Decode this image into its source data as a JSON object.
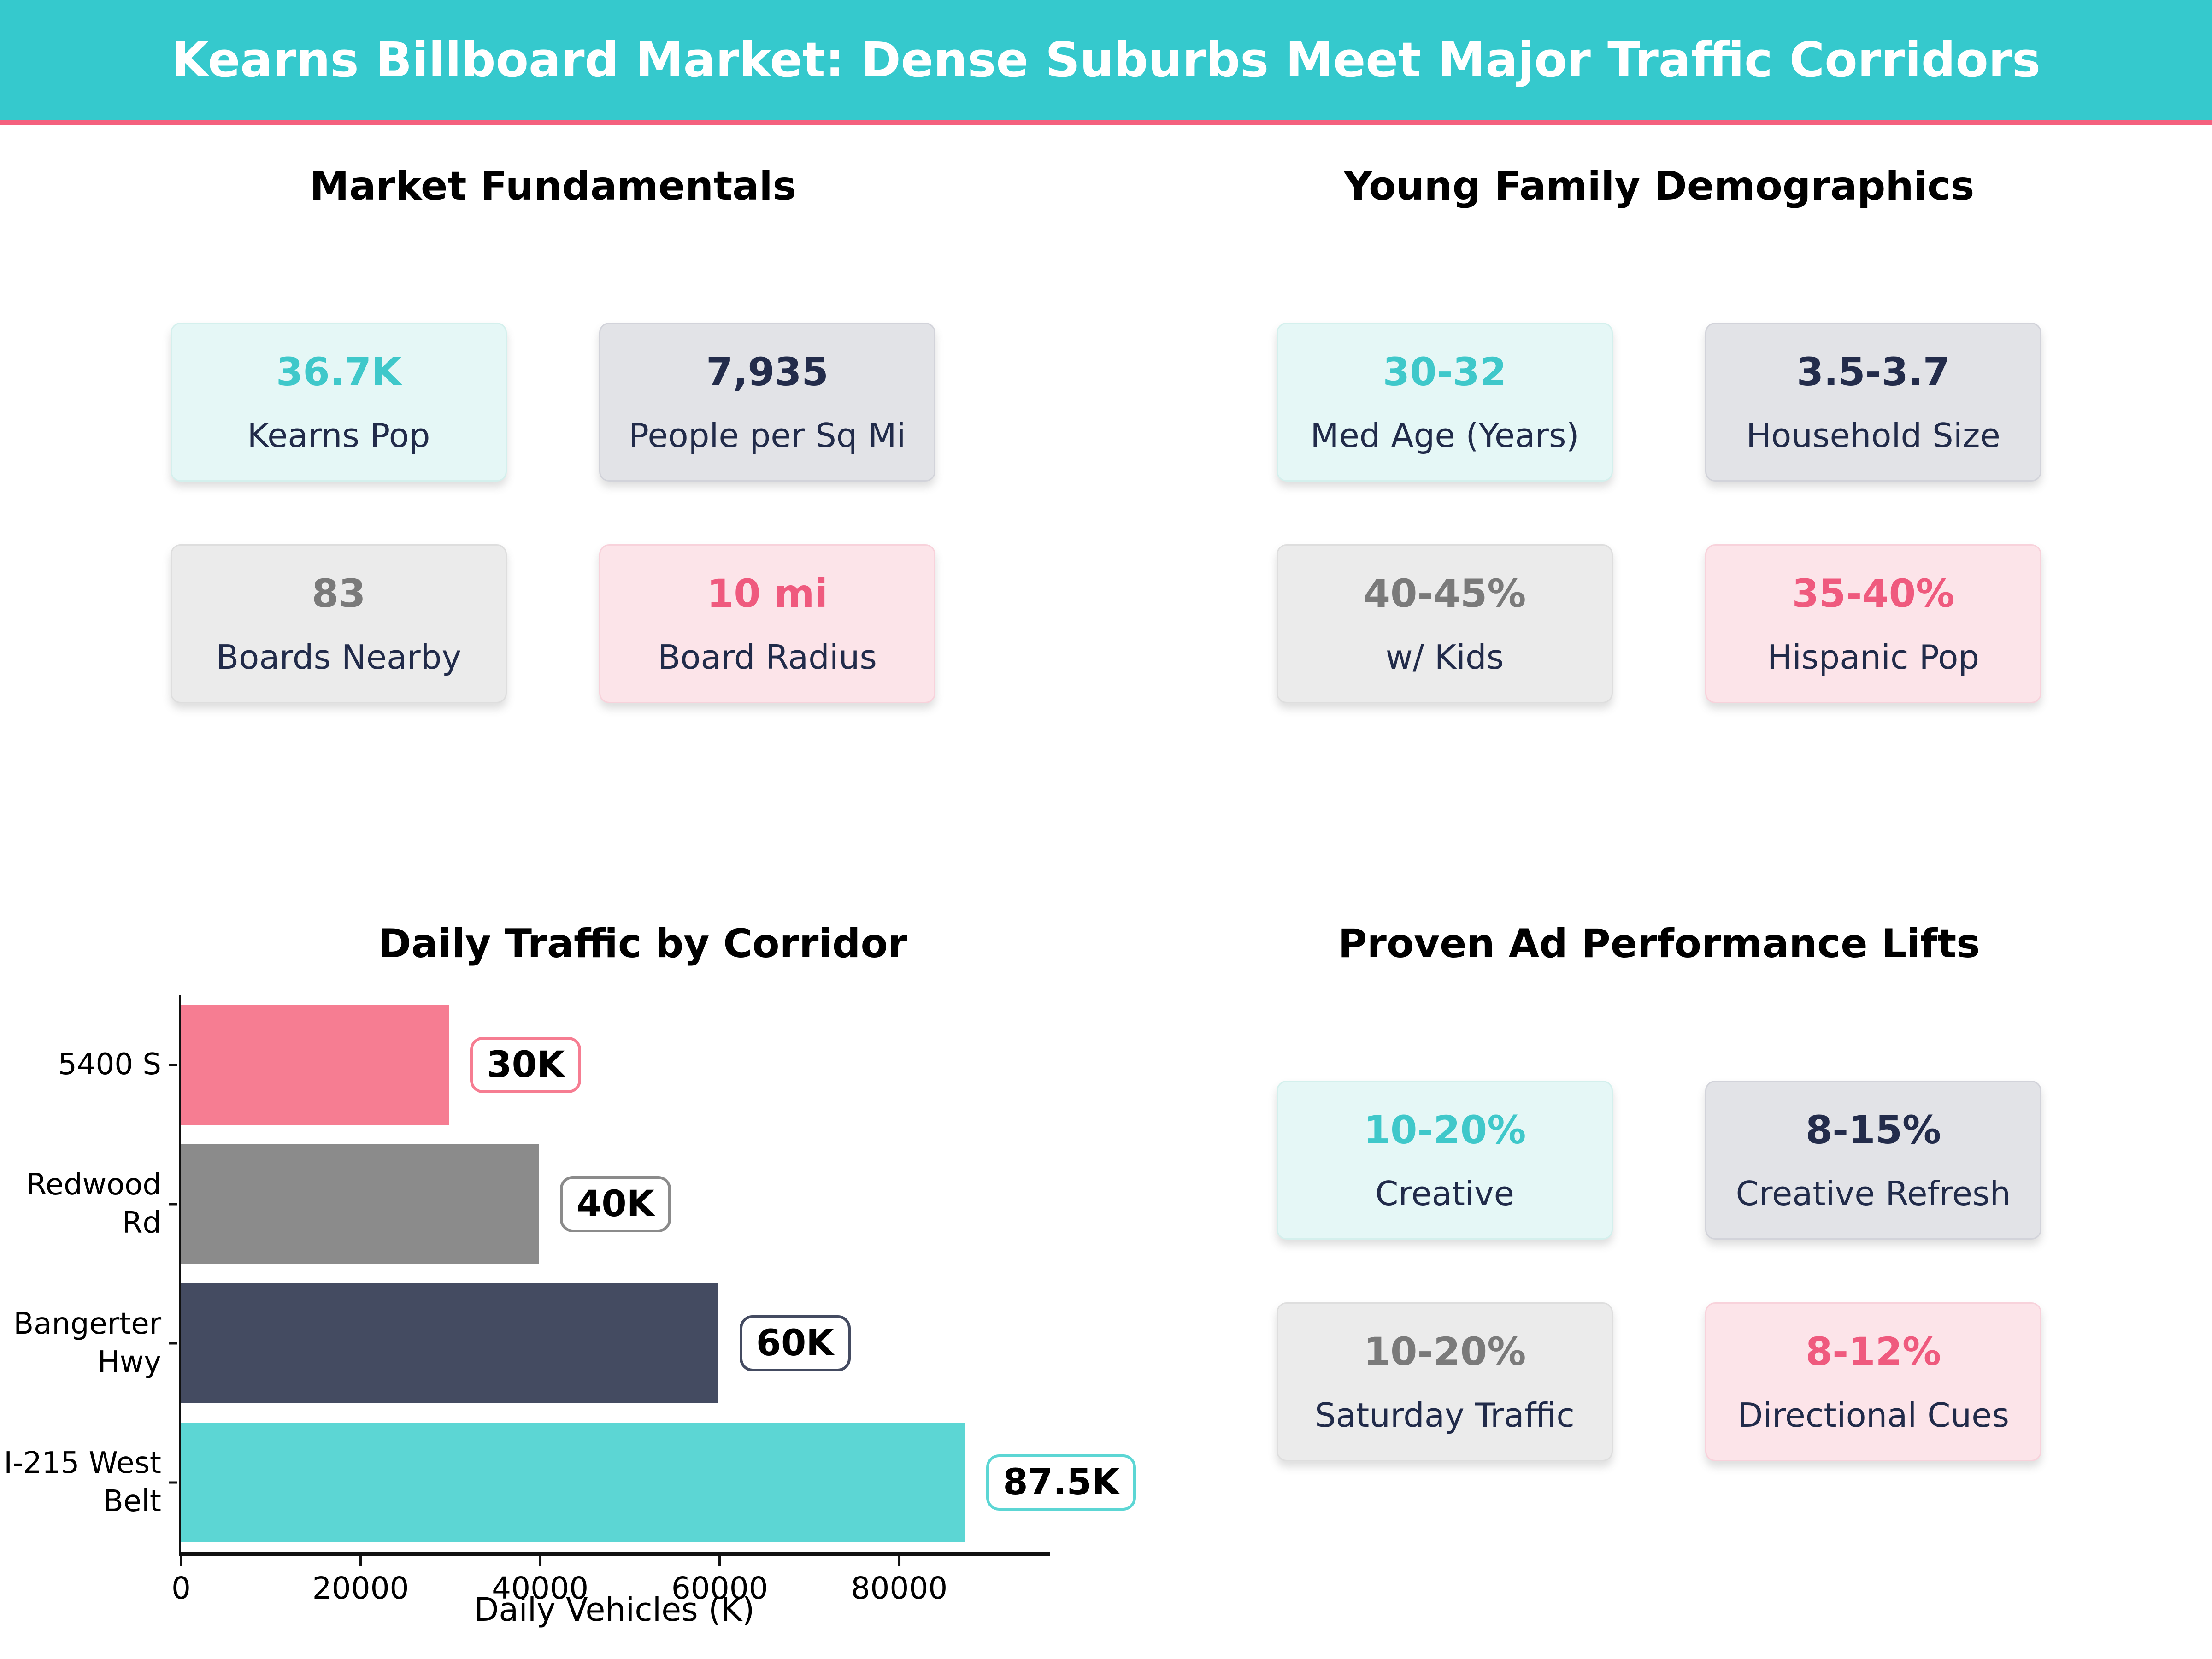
{
  "header": {
    "title": "Kearns Billboard Market: Dense Suburbs Meet Major Traffic Corridors",
    "bg_color": "#35C9CD",
    "accent_color": "#F4617E"
  },
  "label_color": "#212B4A",
  "themes": {
    "teal": {
      "bg": "#E5F7F6",
      "border": "#D4F0ED",
      "value_color": "#3FC8CA"
    },
    "slate": {
      "bg": "#E2E3E7",
      "border": "#D2D3DA",
      "value_color": "#232C4B"
    },
    "gray": {
      "bg": "#EBEBEB",
      "border": "#DEDEDE",
      "value_color": "#7A7A7A"
    },
    "pink": {
      "bg": "#FCE4E9",
      "border": "#F8D2DB",
      "value_color": "#EF5A7E"
    }
  },
  "sections": {
    "market_fundamentals": {
      "title": "Market Fundamentals",
      "cards": [
        {
          "value": "36.7K",
          "label": "Kearns Pop",
          "theme": "teal"
        },
        {
          "value": "7,935",
          "label": "People per Sq Mi",
          "theme": "slate"
        },
        {
          "value": "83",
          "label": "Boards Nearby",
          "theme": "gray"
        },
        {
          "value": "10 mi",
          "label": "Board Radius",
          "theme": "pink"
        }
      ]
    },
    "young_family": {
      "title": "Young Family Demographics",
      "cards": [
        {
          "value": "30-32",
          "label": "Med Age (Years)",
          "theme": "teal"
        },
        {
          "value": "3.5-3.7",
          "label": "Household Size",
          "theme": "slate"
        },
        {
          "value": "40-45%",
          "label": "w/ Kids",
          "theme": "gray"
        },
        {
          "value": "35-40%",
          "label": "Hispanic Pop",
          "theme": "pink"
        }
      ]
    },
    "traffic_chart": {
      "title": "Daily Traffic by Corridor"
    },
    "ad_lifts": {
      "title": "Proven Ad Performance Lifts",
      "cards": [
        {
          "value": "10-20%",
          "label": "Creative",
          "theme": "teal"
        },
        {
          "value": "8-15%",
          "label": "Creative Refresh",
          "theme": "slate"
        },
        {
          "value": "10-20%",
          "label": "Saturday Traffic",
          "theme": "gray"
        },
        {
          "value": "8-12%",
          "label": "Directional Cues",
          "theme": "pink"
        }
      ]
    }
  },
  "chart_data": {
    "type": "bar",
    "orientation": "horizontal",
    "title": "Daily Traffic by Corridor",
    "categories": [
      "5400 S",
      "Redwood Rd",
      "Bangerter Hwy",
      "I-215 West Belt"
    ],
    "category_lines": [
      [
        "5400 S"
      ],
      [
        "Redwood Rd"
      ],
      [
        "Bangerter",
        "Hwy"
      ],
      [
        "I-215 West",
        "Belt"
      ]
    ],
    "values": [
      30000,
      40000,
      60000,
      87500
    ],
    "value_labels": [
      "30K",
      "40K",
      "60K",
      "87.5K"
    ],
    "bar_colors": [
      "#F67D92",
      "#8B8B8B",
      "#444B61",
      "#5CD6D4"
    ],
    "xlabel": "Daily Vehicles (K)",
    "xlim": [
      0,
      96000
    ],
    "xticks": [
      0,
      20000,
      40000,
      60000,
      80000
    ],
    "grid": false,
    "legend": false
  }
}
